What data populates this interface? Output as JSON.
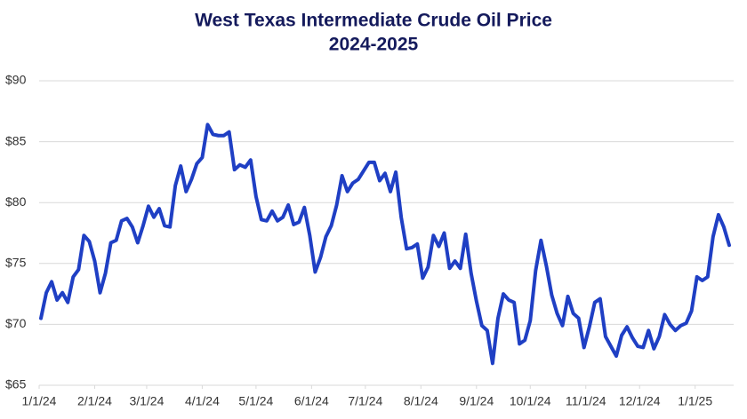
{
  "chart_data": {
    "type": "line",
    "title": "West Texas Intermediate Crude Oil Price",
    "subtitle": "2024-2025",
    "x": [
      "2024-01-02",
      "2024-01-05",
      "2024-01-08",
      "2024-01-11",
      "2024-01-14",
      "2024-01-17",
      "2024-01-20",
      "2024-01-23",
      "2024-01-26",
      "2024-01-29",
      "2024-02-01",
      "2024-02-04",
      "2024-02-07",
      "2024-02-10",
      "2024-02-13",
      "2024-02-16",
      "2024-02-19",
      "2024-02-22",
      "2024-02-25",
      "2024-02-28",
      "2024-03-02",
      "2024-03-05",
      "2024-03-08",
      "2024-03-11",
      "2024-03-14",
      "2024-03-17",
      "2024-03-20",
      "2024-03-23",
      "2024-03-26",
      "2024-03-29",
      "2024-04-01",
      "2024-04-04",
      "2024-04-07",
      "2024-04-10",
      "2024-04-13",
      "2024-04-16",
      "2024-04-19",
      "2024-04-22",
      "2024-04-25",
      "2024-04-28",
      "2024-05-01",
      "2024-05-04",
      "2024-05-07",
      "2024-05-10",
      "2024-05-13",
      "2024-05-16",
      "2024-05-19",
      "2024-05-22",
      "2024-05-25",
      "2024-05-28",
      "2024-05-31",
      "2024-06-03",
      "2024-06-06",
      "2024-06-09",
      "2024-06-12",
      "2024-06-15",
      "2024-06-18",
      "2024-06-21",
      "2024-06-24",
      "2024-06-27",
      "2024-06-30",
      "2024-07-03",
      "2024-07-06",
      "2024-07-09",
      "2024-07-12",
      "2024-07-15",
      "2024-07-18",
      "2024-07-21",
      "2024-07-24",
      "2024-07-27",
      "2024-07-30",
      "2024-08-02",
      "2024-08-05",
      "2024-08-08",
      "2024-08-11",
      "2024-08-14",
      "2024-08-17",
      "2024-08-20",
      "2024-08-23",
      "2024-08-26",
      "2024-08-29",
      "2024-09-01",
      "2024-09-04",
      "2024-09-07",
      "2024-09-10",
      "2024-09-13",
      "2024-09-16",
      "2024-09-19",
      "2024-09-22",
      "2024-09-25",
      "2024-09-28",
      "2024-10-01",
      "2024-10-04",
      "2024-10-07",
      "2024-10-10",
      "2024-10-13",
      "2024-10-16",
      "2024-10-19",
      "2024-10-22",
      "2024-10-25",
      "2024-10-28",
      "2024-10-31",
      "2024-11-03",
      "2024-11-06",
      "2024-11-09",
      "2024-11-12",
      "2024-11-15",
      "2024-11-18",
      "2024-11-21",
      "2024-11-24",
      "2024-11-27",
      "2024-11-30",
      "2024-12-03",
      "2024-12-06",
      "2024-12-09",
      "2024-12-12",
      "2024-12-15",
      "2024-12-18",
      "2024-12-21",
      "2024-12-24",
      "2024-12-27",
      "2024-12-30",
      "2025-01-02",
      "2025-01-05",
      "2025-01-08",
      "2025-01-11",
      "2025-01-14",
      "2025-01-17",
      "2025-01-20"
    ],
    "series": [
      {
        "name": "WTI",
        "color": "#1f3fc4",
        "values": [
          70.5,
          72.6,
          73.5,
          72.0,
          72.6,
          71.8,
          73.9,
          74.5,
          77.3,
          76.8,
          75.2,
          72.6,
          74.2,
          76.7,
          76.9,
          78.5,
          78.7,
          78.0,
          76.7,
          78.1,
          79.7,
          78.8,
          79.5,
          78.1,
          78.0,
          81.4,
          83.0,
          80.9,
          81.9,
          83.2,
          83.7,
          86.4,
          85.6,
          85.5,
          85.5,
          85.8,
          82.7,
          83.1,
          82.9,
          83.5,
          80.5,
          78.6,
          78.5,
          79.3,
          78.5,
          78.8,
          79.8,
          78.2,
          78.4,
          79.6,
          77.3,
          74.3,
          75.5,
          77.2,
          78.1,
          79.8,
          82.2,
          80.9,
          81.6,
          81.9,
          82.6,
          83.3,
          83.3,
          81.8,
          82.4,
          80.9,
          82.5,
          78.8,
          76.2,
          76.3,
          76.6,
          73.8,
          74.7,
          77.3,
          76.4,
          77.5,
          74.6,
          75.2,
          74.6,
          77.4,
          74.2,
          71.9,
          69.9,
          69.5,
          66.8,
          70.5,
          72.5,
          72.0,
          71.8,
          68.4,
          68.7,
          70.3,
          74.4,
          76.9,
          74.8,
          72.4,
          70.9,
          69.9,
          72.3,
          70.9,
          70.5,
          68.1,
          69.8,
          71.8,
          72.1,
          69.0,
          68.2,
          67.4,
          69.1,
          69.8,
          68.9,
          68.2,
          68.1,
          69.5,
          68.0,
          69.0,
          70.8,
          70.0,
          69.5,
          69.9,
          70.1,
          71.1,
          73.9,
          73.6,
          73.9,
          77.2,
          79.0,
          78.0,
          76.5
        ]
      }
    ],
    "xlim": [
      "2024-01-01",
      "2025-01-22"
    ],
    "xticks": [
      {
        "value": "2024-01-01",
        "label": "1/1/24"
      },
      {
        "value": "2024-02-01",
        "label": "2/1/24"
      },
      {
        "value": "2024-03-01",
        "label": "3/1/24"
      },
      {
        "value": "2024-04-01",
        "label": "4/1/24"
      },
      {
        "value": "2024-05-01",
        "label": "5/1/24"
      },
      {
        "value": "2024-06-01",
        "label": "6/1/24"
      },
      {
        "value": "2024-07-01",
        "label": "7/1/24"
      },
      {
        "value": "2024-08-01",
        "label": "8/1/24"
      },
      {
        "value": "2024-09-01",
        "label": "9/1/24"
      },
      {
        "value": "2024-10-01",
        "label": "10/1/24"
      },
      {
        "value": "2024-11-01",
        "label": "11/1/24"
      },
      {
        "value": "2024-12-01",
        "label": "12/1/24"
      },
      {
        "value": "2025-01-01",
        "label": "1/1/25"
      }
    ],
    "ylim": [
      65,
      90
    ],
    "yticks": [
      {
        "value": 65,
        "label": "$65"
      },
      {
        "value": 70,
        "label": "$70"
      },
      {
        "value": 75,
        "label": "$75"
      },
      {
        "value": 80,
        "label": "$80"
      },
      {
        "value": 85,
        "label": "$85"
      },
      {
        "value": 90,
        "label": "$90"
      }
    ],
    "grid": true
  }
}
